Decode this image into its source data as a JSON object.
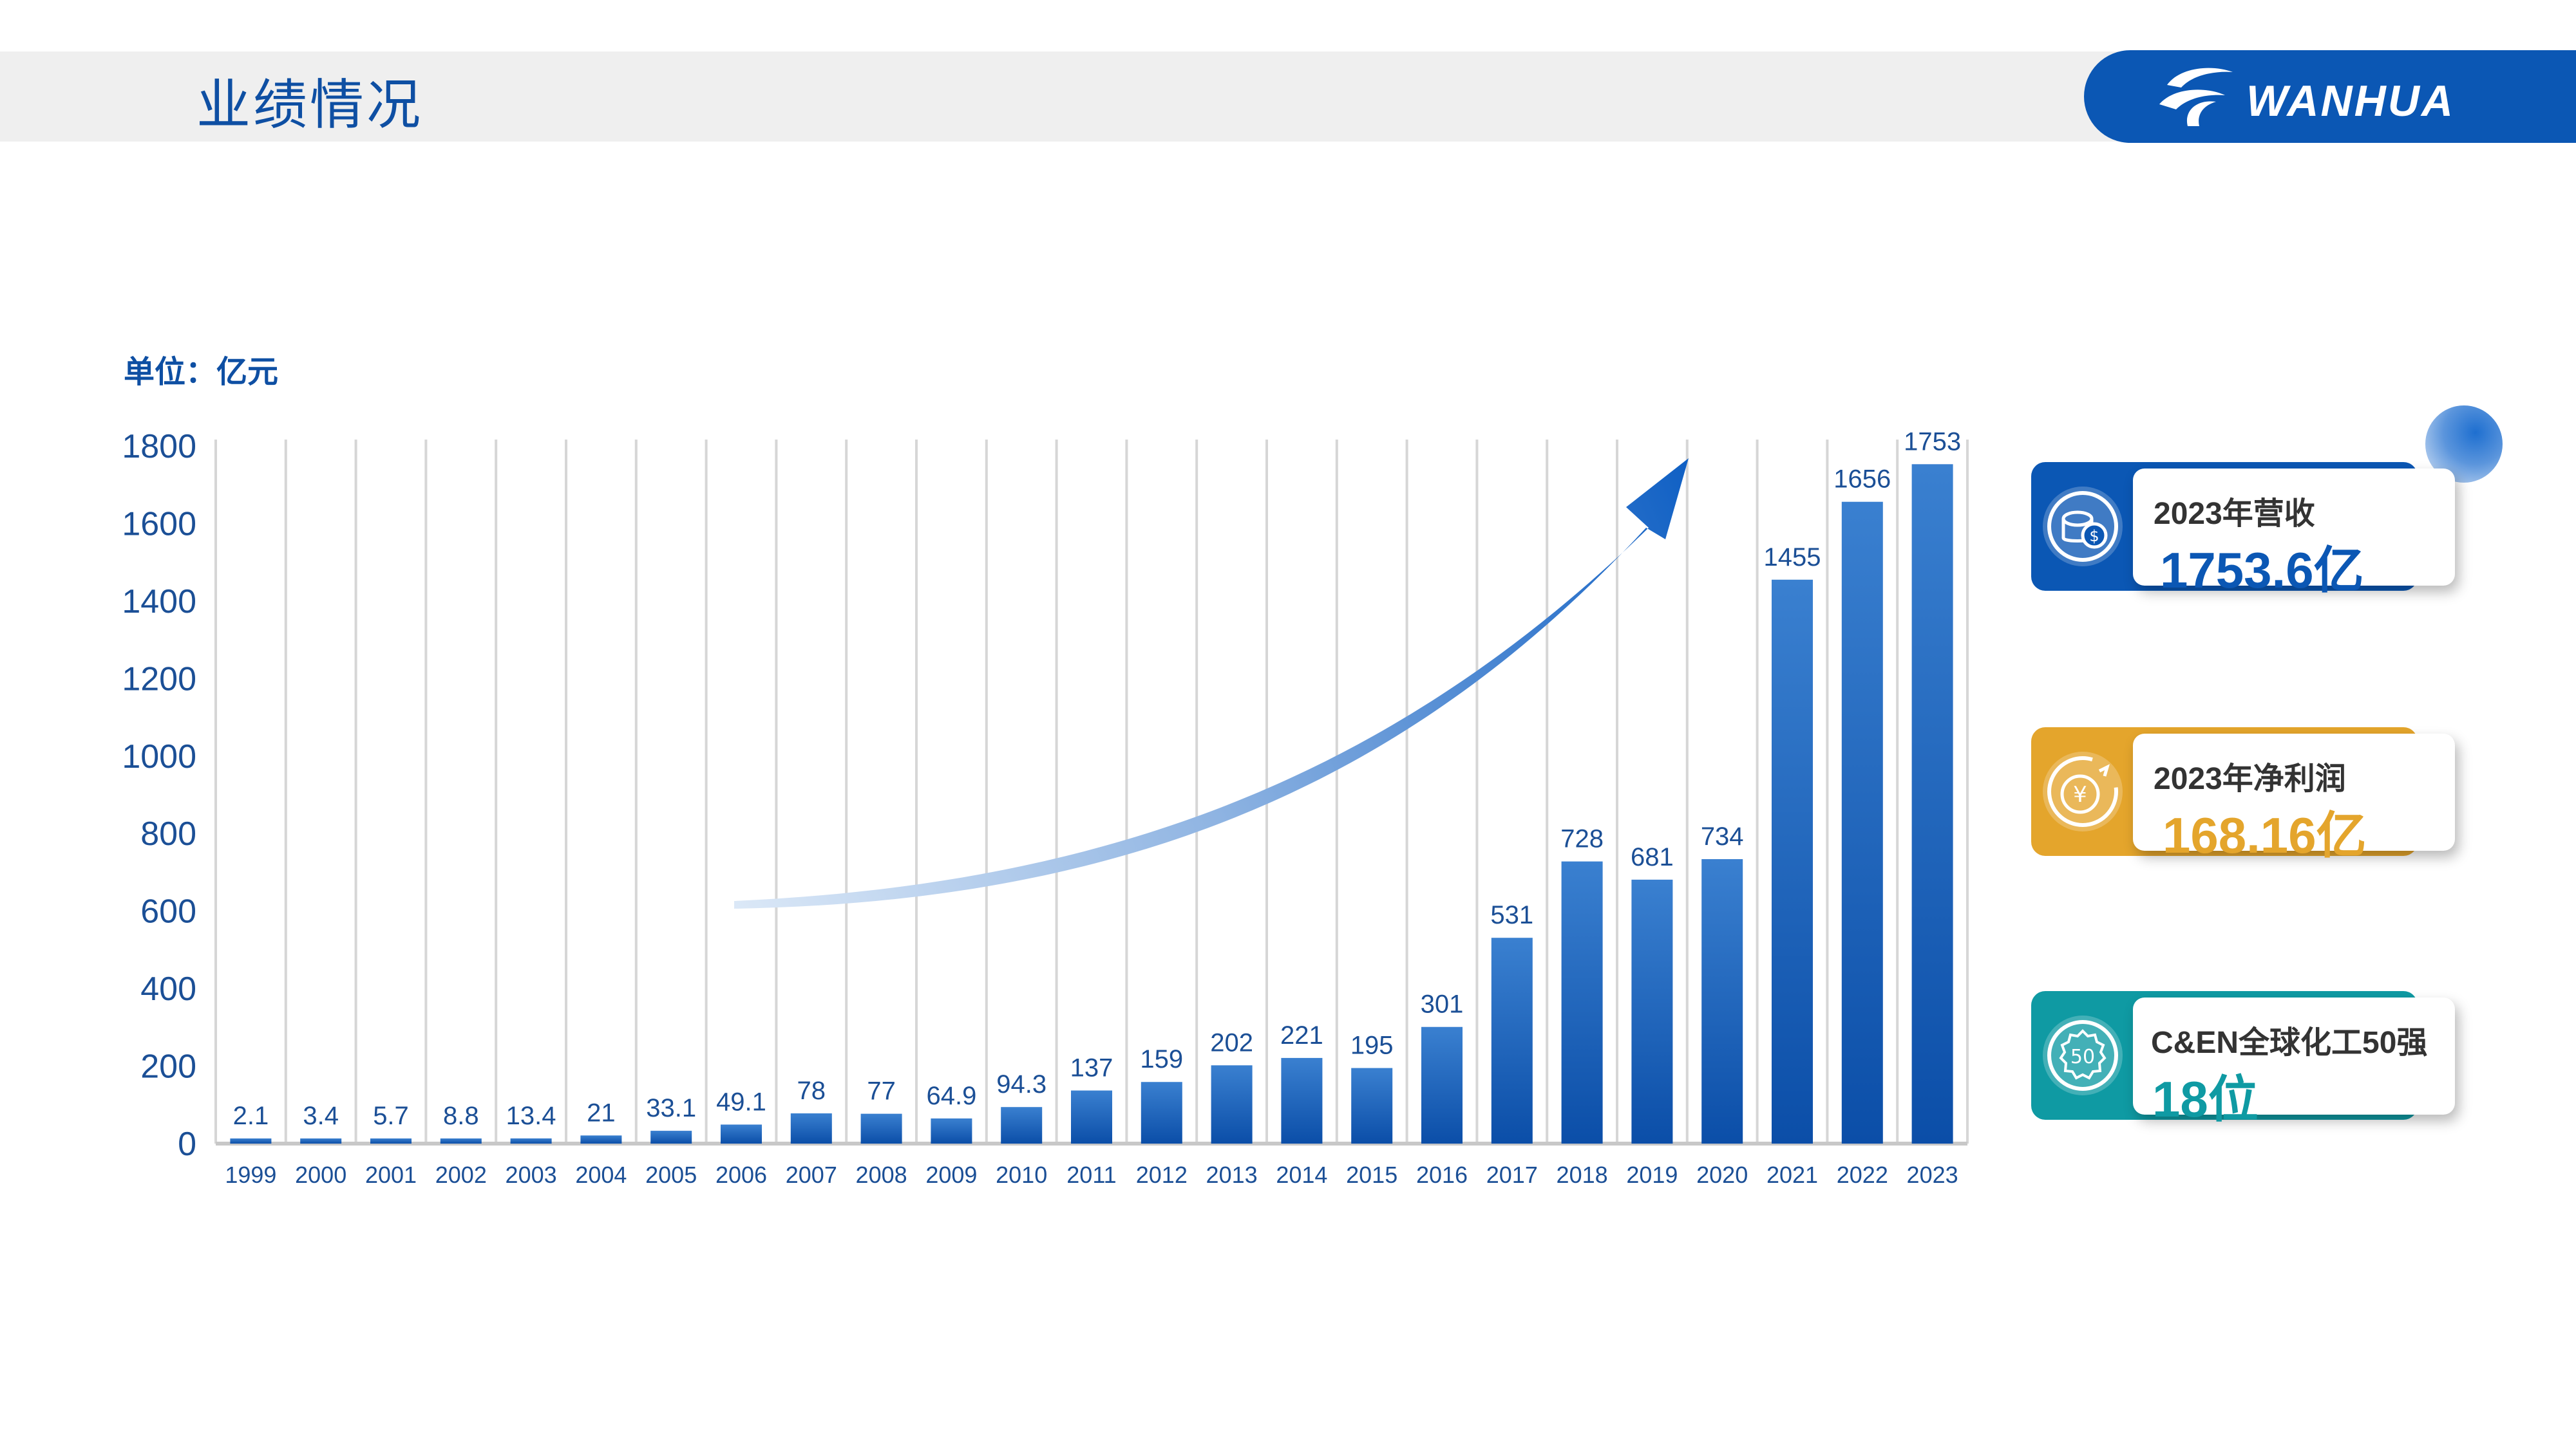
{
  "header": {
    "title": "业绩情况",
    "logo_text": "WANHUA"
  },
  "unit_label": "单位：亿元",
  "colors": {
    "brand_blue": "#0b57b4",
    "bar_top": "#3a7fcf",
    "bar_bottom": "#0c4fa8",
    "text_blue": "#0e4fa3",
    "gold": "#e4a52c",
    "teal": "#0f9aa3"
  },
  "cards": [
    {
      "icon": "coins-icon",
      "label": "2023年营收",
      "value": "1753.6亿",
      "color": "#0b57b4",
      "value_color": "#0b57b4"
    },
    {
      "icon": "yen-growth-icon",
      "label": "2023年净利润",
      "value": "168.16亿",
      "color": "#e4a52c",
      "value_color": "#e4a52c"
    },
    {
      "icon": "badge-50-icon",
      "icon_text": "50",
      "label": "C&EN全球化工50强",
      "value": "18位",
      "color": "#0f9aa3",
      "value_color": "#0f9aa3"
    }
  ],
  "chart_data": {
    "type": "bar",
    "categories": [
      "1999",
      "2000",
      "2001",
      "2002",
      "2003",
      "2004",
      "2005",
      "2006",
      "2007",
      "2008",
      "2009",
      "2010",
      "2011",
      "2012",
      "2013",
      "2014",
      "2015",
      "2016",
      "2017",
      "2018",
      "2019",
      "2020",
      "2021",
      "2022",
      "2023"
    ],
    "values": [
      2.1,
      3.4,
      5.7,
      8.8,
      13.4,
      21,
      33.1,
      49.1,
      78,
      77,
      64.9,
      94.3,
      137,
      159,
      202,
      221,
      195,
      301,
      531,
      728,
      681,
      734,
      1455,
      1656,
      1753
    ],
    "value_labels": [
      "2.1",
      "3.4",
      "5.7",
      "8.8",
      "13.4",
      "21",
      "33.1",
      "49.1",
      "78",
      "77",
      "64.9",
      "94.3",
      "137",
      "159",
      "202",
      "221",
      "195",
      "301",
      "531",
      "728",
      "681",
      "734",
      "1455",
      "1656",
      "1753"
    ],
    "y_ticks": [
      "0",
      "200",
      "400",
      "600",
      "800",
      "1000",
      "1200",
      "1400",
      "1600",
      "1800"
    ],
    "ylim": [
      0,
      1800
    ],
    "ylabel": "单位：亿元",
    "grid": "vertical",
    "trend_arrow": true
  }
}
